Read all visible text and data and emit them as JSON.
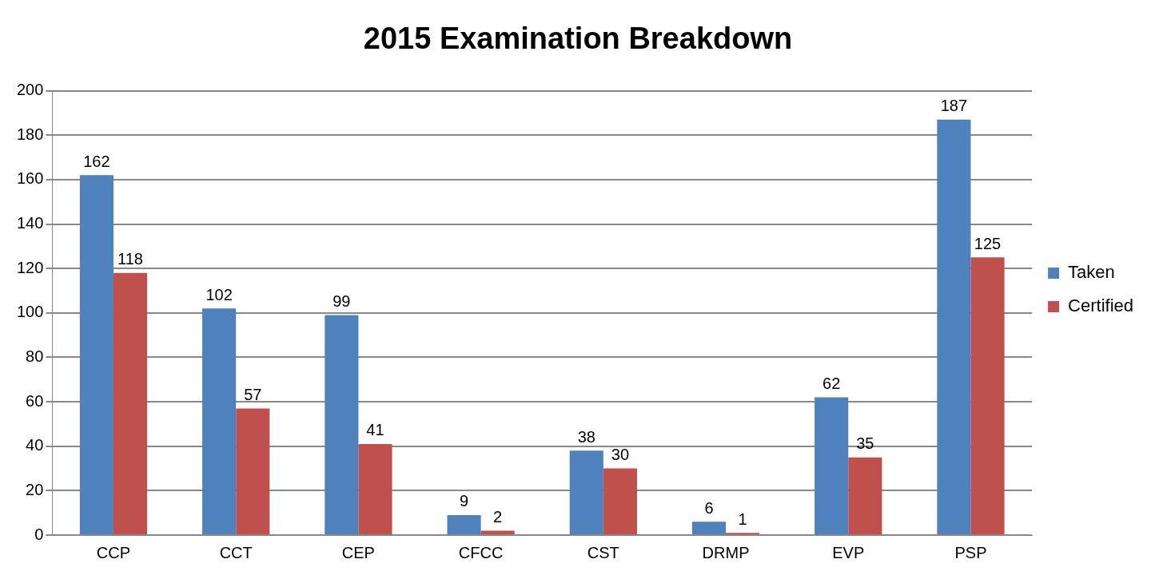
{
  "chart_data": {
    "type": "bar",
    "title": "2015 Examination Breakdown",
    "categories": [
      "CCP",
      "CCT",
      "CEP",
      "CFCC",
      "CST",
      "DRMP",
      "EVP",
      "PSP"
    ],
    "series": [
      {
        "name": "Taken",
        "color": "#4f81bd",
        "values": [
          162,
          102,
          99,
          9,
          38,
          6,
          62,
          187
        ]
      },
      {
        "name": "Certified",
        "color": "#c0504d",
        "values": [
          118,
          57,
          41,
          2,
          30,
          1,
          35,
          125
        ]
      }
    ],
    "ylim": [
      0,
      200
    ],
    "yticks": [
      0,
      20,
      40,
      60,
      80,
      100,
      120,
      140,
      160,
      180,
      200
    ],
    "grid": "y",
    "legend": "right",
    "data_labels": true
  }
}
